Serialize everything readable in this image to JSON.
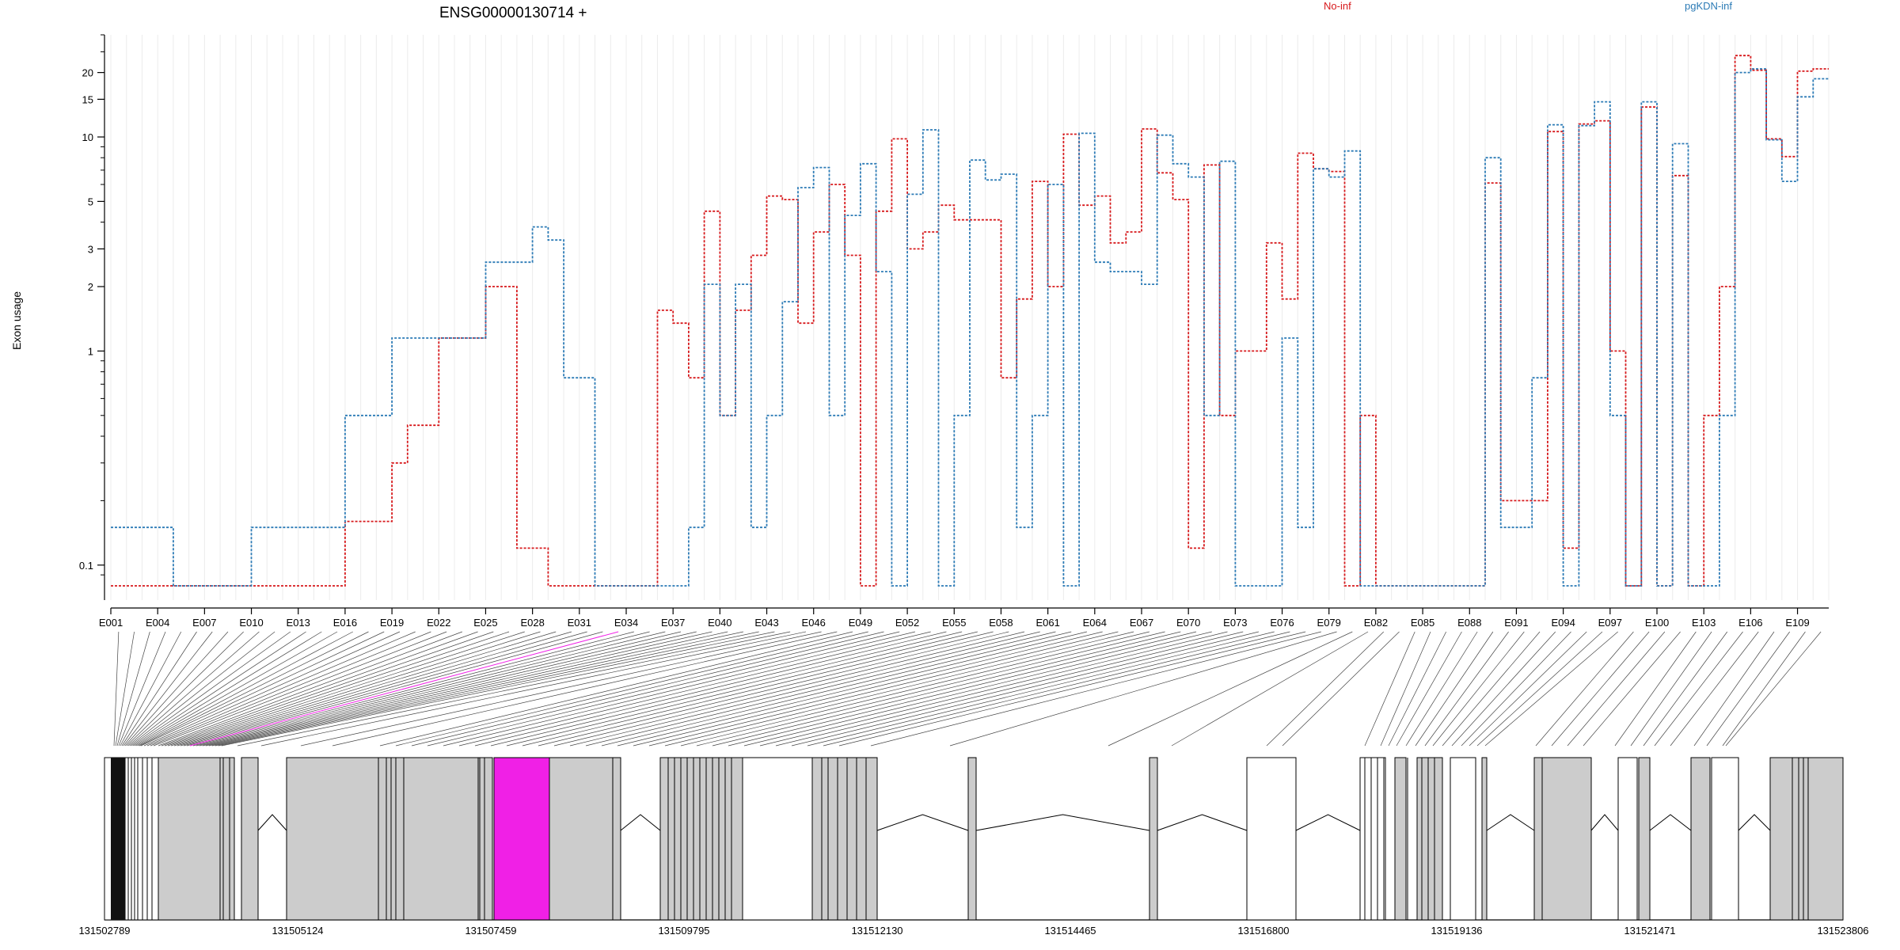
{
  "chart_data": {
    "type": "line",
    "title": "ENSG00000130714 +",
    "ylabel": "Exon usage",
    "yscale": "log",
    "ylim": [
      0.08,
      30
    ],
    "yticks": [
      0.1,
      1,
      2,
      3,
      5,
      10,
      15,
      20
    ],
    "ytick_labels": [
      "0.1",
      "1",
      "2",
      "3",
      "5",
      "10",
      "15",
      "20"
    ],
    "grid": true,
    "legend_placement": "top",
    "exon_ticks": [
      "E001",
      "E004",
      "E007",
      "E010",
      "E013",
      "E016",
      "E019",
      "E022",
      "E025",
      "E028",
      "E031",
      "E034",
      "E037",
      "E040",
      "E043",
      "E046",
      "E049",
      "E052",
      "E055",
      "E058",
      "E061",
      "E064",
      "E067",
      "E070",
      "E073",
      "E076",
      "E079",
      "E082",
      "E085",
      "E088",
      "E091",
      "E094",
      "E097",
      "E100",
      "E103",
      "E106",
      "E109"
    ],
    "series": [
      {
        "name": "No-inf",
        "color": "#d7191c",
        "values": [
          0.08,
          0.08,
          0.08,
          0.08,
          0.08,
          0.08,
          0.08,
          0.08,
          0.08,
          0.08,
          0.08,
          0.08,
          0.08,
          0.08,
          0.08,
          0.16,
          0.16,
          0.16,
          0.3,
          0.45,
          0.45,
          1.15,
          1.15,
          1.15,
          2.0,
          2.0,
          0.12,
          0.12,
          0.08,
          0.08,
          0.08,
          0.08,
          0.08,
          0.08,
          0.08,
          1.55,
          1.35,
          0.75,
          4.5,
          0.5,
          1.55,
          2.8,
          5.3,
          5.1,
          1.35,
          3.6,
          6.0,
          2.8,
          0.08,
          4.5,
          9.8,
          3.0,
          3.6,
          4.8,
          4.1,
          4.1,
          4.1,
          0.75,
          1.75,
          6.2,
          2.0,
          10.3,
          4.8,
          5.3,
          3.2,
          3.6,
          10.9,
          6.8,
          5.1,
          0.12,
          7.4,
          0.5,
          1.0,
          1.0,
          3.2,
          1.75,
          8.4,
          7.1,
          6.9,
          0.08,
          0.5,
          0.08,
          0.08,
          0.08,
          0.08,
          0.08,
          0.08,
          0.08,
          6.1,
          0.2,
          0.2,
          0.2,
          10.6,
          0.12,
          11.5,
          11.9,
          1.0,
          0.08,
          13.8,
          0.08,
          6.6,
          0.08,
          0.5,
          2.0,
          24.0,
          20.5,
          9.8,
          8.1,
          20.3,
          20.8
        ]
      },
      {
        "name": "pgKDN-inf",
        "color": "#2c7bb6",
        "values": [
          0.15,
          0.15,
          0.15,
          0.15,
          0.08,
          0.08,
          0.08,
          0.08,
          0.08,
          0.15,
          0.15,
          0.15,
          0.15,
          0.15,
          0.15,
          0.5,
          0.5,
          0.5,
          1.15,
          1.15,
          1.15,
          1.15,
          1.15,
          1.15,
          2.6,
          2.6,
          2.6,
          3.8,
          3.3,
          0.75,
          0.75,
          0.08,
          0.08,
          0.08,
          0.08,
          0.08,
          0.08,
          0.15,
          2.05,
          0.5,
          2.05,
          0.15,
          0.5,
          1.7,
          5.8,
          7.2,
          0.5,
          4.3,
          7.5,
          2.35,
          0.08,
          5.4,
          10.8,
          0.08,
          0.5,
          7.8,
          6.3,
          6.7,
          0.15,
          0.5,
          6.0,
          0.08,
          10.4,
          2.6,
          2.35,
          2.35,
          2.05,
          10.2,
          7.5,
          6.5,
          0.5,
          7.7,
          0.08,
          0.08,
          0.08,
          1.15,
          0.15,
          7.1,
          6.5,
          8.6,
          0.08,
          0.08,
          0.08,
          0.08,
          0.08,
          0.08,
          0.08,
          0.08,
          8.0,
          0.15,
          0.15,
          0.75,
          11.4,
          0.08,
          11.3,
          14.6,
          0.5,
          0.08,
          14.6,
          0.08,
          9.3,
          0.08,
          0.08,
          0.5,
          20.0,
          20.8,
          9.7,
          6.2,
          15.4,
          18.7
        ]
      }
    ],
    "gene_model": {
      "coordinate_labels": [
        "131502789",
        "131505124",
        "131507459",
        "131509795",
        "131512130",
        "131514465",
        "131516800",
        "131519136",
        "131521471",
        "131523806"
      ],
      "highlight_color": "#f020e6",
      "exon_fill": "#cccccc"
    }
  }
}
